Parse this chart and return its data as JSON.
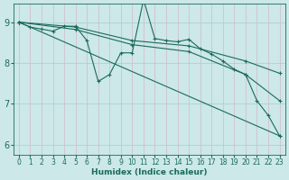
{
  "xlabel": "Humidex (Indice chaleur)",
  "bg_color": "#cce8e8",
  "grid_color_h": "#c8b8c8",
  "grid_color_v": "#c8b8c8",
  "line_color": "#1a6b5a",
  "xlim": [
    -0.5,
    23.5
  ],
  "ylim": [
    5.75,
    9.45
  ],
  "yticks": [
    6,
    7,
    8,
    9
  ],
  "xticks": [
    0,
    1,
    2,
    3,
    4,
    5,
    6,
    7,
    8,
    9,
    10,
    11,
    12,
    13,
    14,
    15,
    16,
    17,
    18,
    19,
    20,
    21,
    22,
    23
  ],
  "lines": [
    {
      "x": [
        0,
        1,
        2,
        3,
        4,
        5,
        6,
        7,
        8,
        9,
        10,
        11,
        12,
        13,
        14,
        15,
        16,
        17,
        18,
        19,
        20,
        21,
        22,
        23
      ],
      "y": [
        9.0,
        8.88,
        8.83,
        8.78,
        8.9,
        8.9,
        8.55,
        7.55,
        7.72,
        8.25,
        8.25,
        9.55,
        8.6,
        8.55,
        8.52,
        8.58,
        8.35,
        8.22,
        8.05,
        7.85,
        7.72,
        7.08,
        6.72,
        6.22
      ]
    },
    {
      "x": [
        0,
        5,
        10,
        15,
        20,
        23
      ],
      "y": [
        9.0,
        8.88,
        8.55,
        8.42,
        8.05,
        7.75
      ]
    },
    {
      "x": [
        0,
        5,
        10,
        15,
        20,
        23
      ],
      "y": [
        9.0,
        8.82,
        8.45,
        8.28,
        7.72,
        7.08
      ]
    },
    {
      "x": [
        0,
        23
      ],
      "y": [
        9.0,
        6.22
      ]
    }
  ]
}
